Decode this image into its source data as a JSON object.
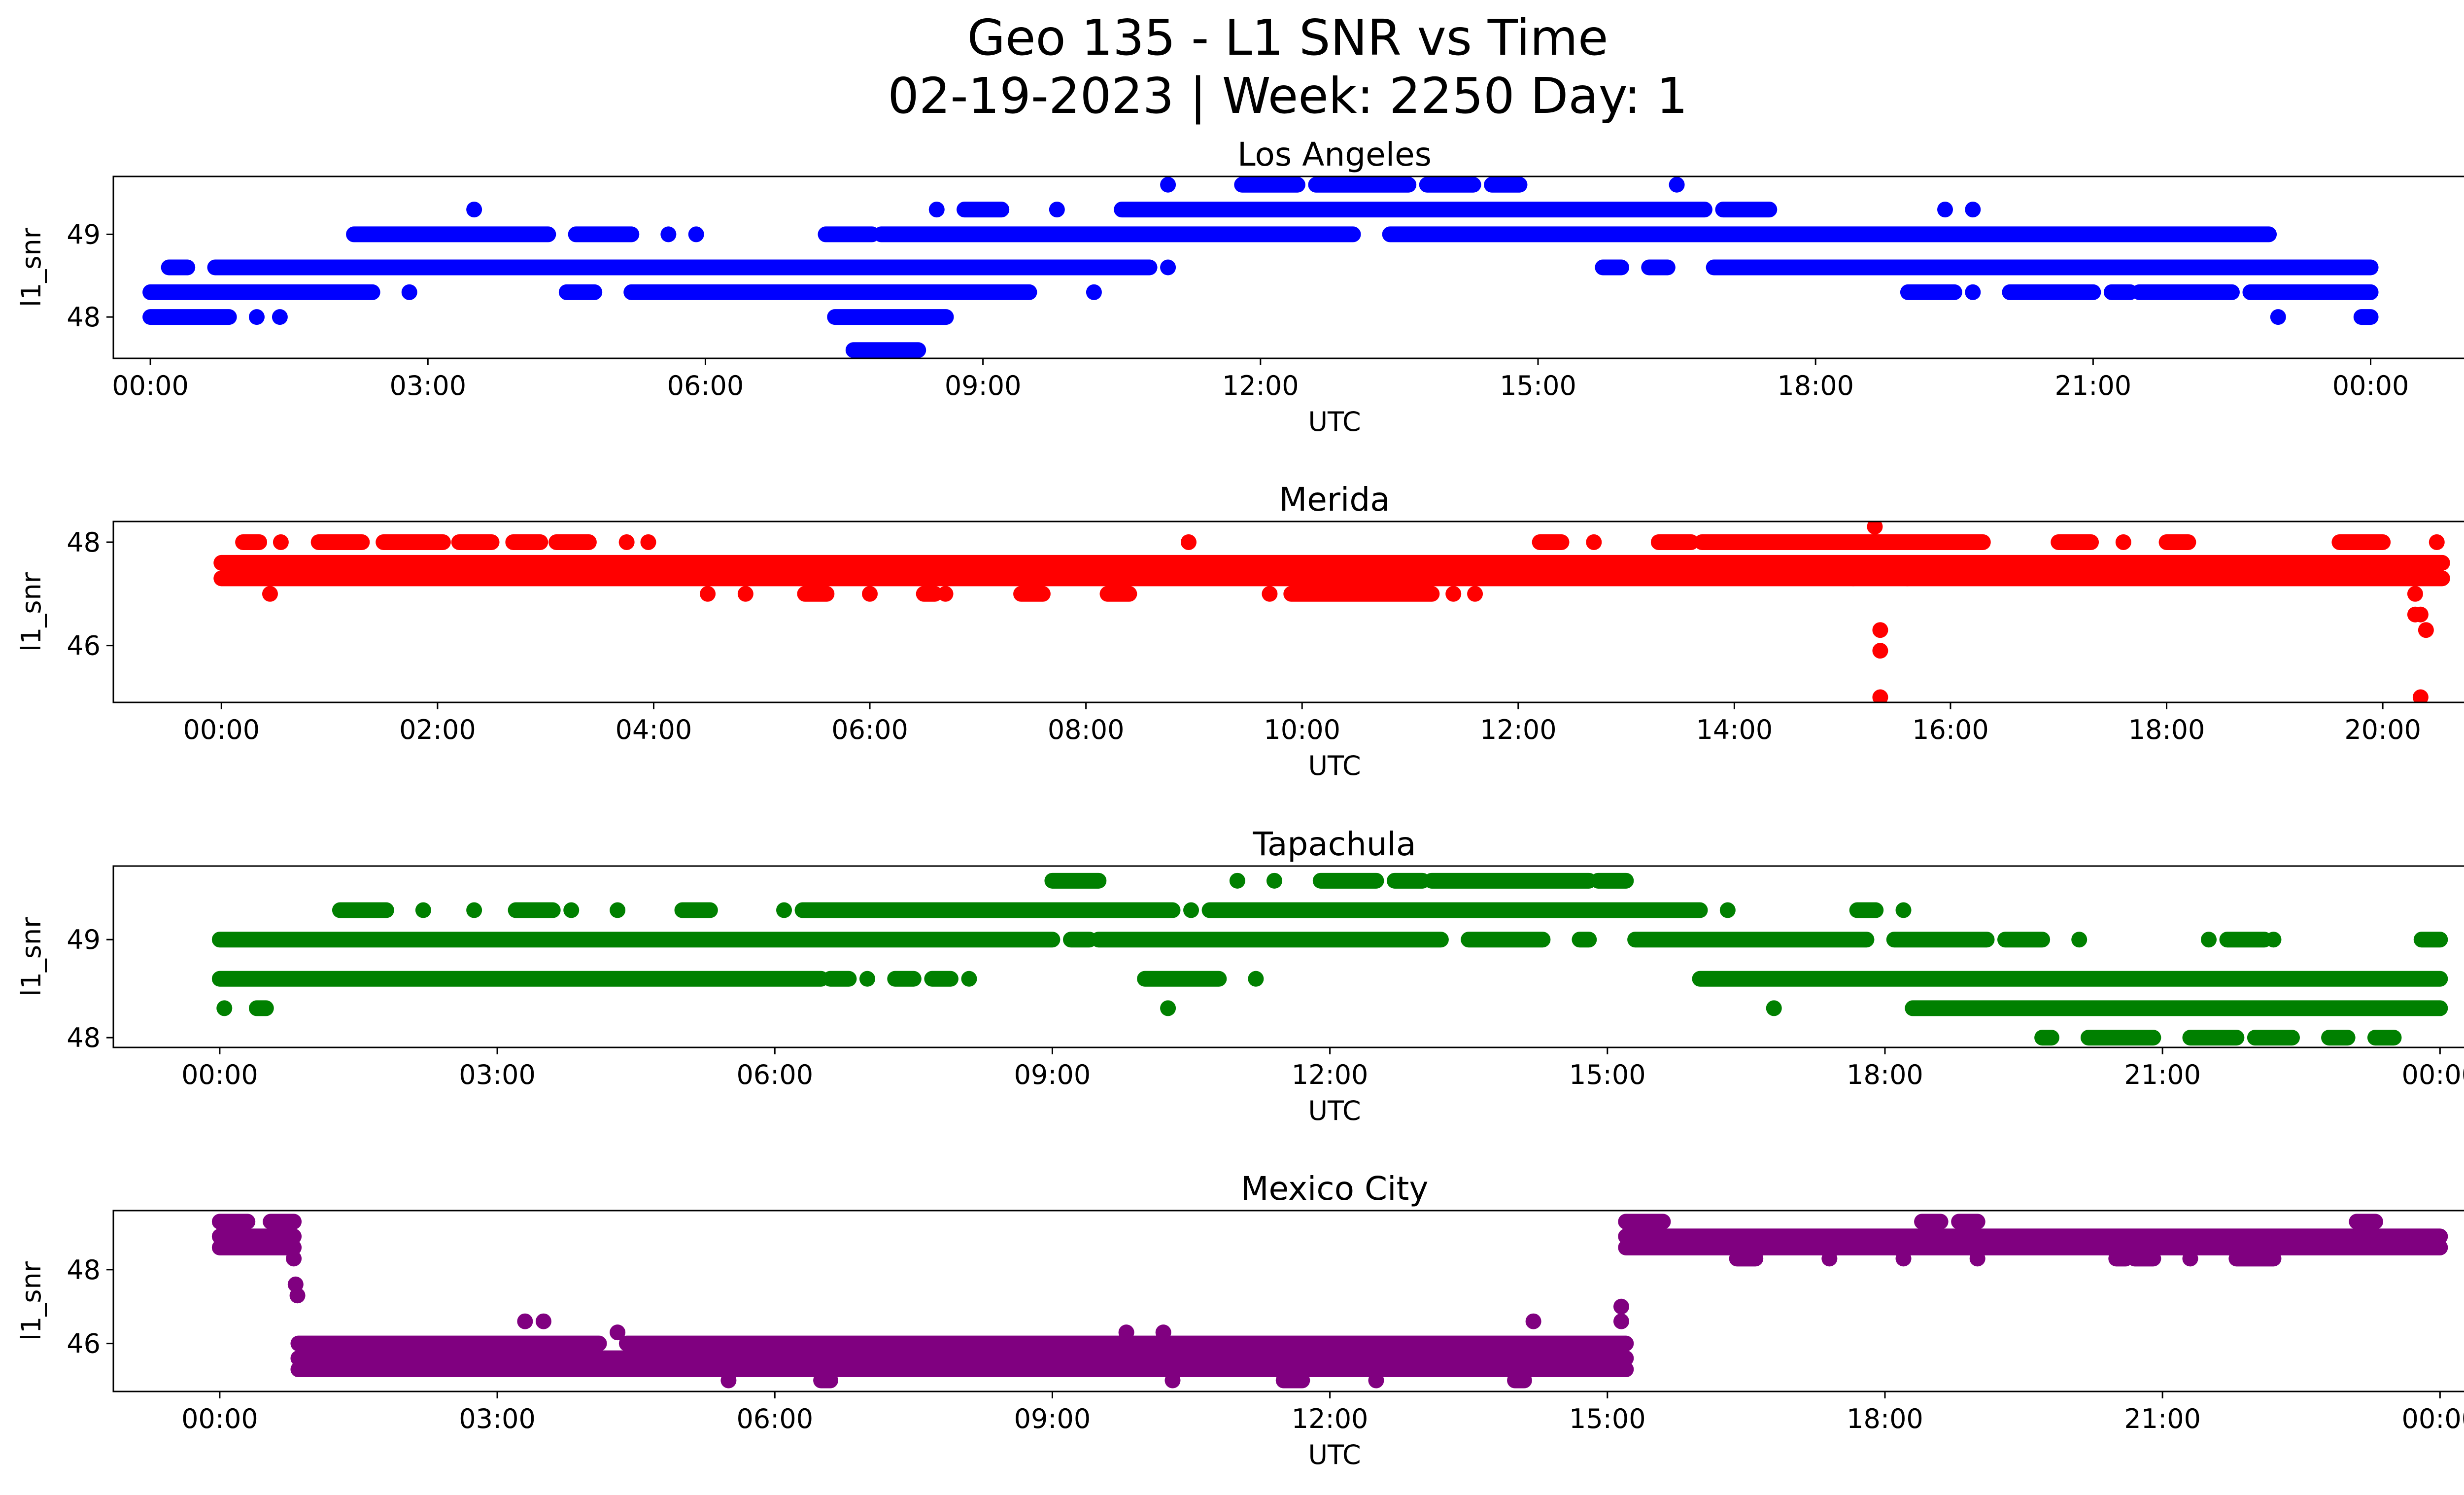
{
  "figure": {
    "title_line1": "Geo 135 - L1 SNR vs Time",
    "title_line2": "02-19-2023 | Week: 2250 Day: 1"
  },
  "chart_data": [
    {
      "type": "scatter",
      "title": "Los Angeles",
      "xlabel": "UTC",
      "ylabel": "l1_snr",
      "color": "#0000ff",
      "x_unit": "hours_utc",
      "xlim": [
        -0.4,
        26.0
      ],
      "ylim": [
        47.5,
        49.7
      ],
      "x_ticks": [
        0,
        3,
        6,
        9,
        12,
        15,
        18,
        21,
        24
      ],
      "x_tick_labels": [
        "00:00",
        "03:00",
        "06:00",
        "09:00",
        "12:00",
        "15:00",
        "18:00",
        "21:00",
        "00:00"
      ],
      "y_ticks": [
        48,
        49
      ],
      "y_tick_labels": [
        "48",
        "49"
      ],
      "bands": [
        {
          "y": 48.3,
          "segments": [
            [
              0.0,
              2.4
            ],
            [
              2.8,
              2.8
            ],
            [
              4.5,
              4.8
            ],
            [
              5.2,
              9.5
            ],
            [
              10.2,
              10.2
            ],
            [
              19.0,
              19.5
            ],
            [
              19.7,
              19.7
            ],
            [
              20.1,
              21.0
            ],
            [
              21.2,
              21.4
            ],
            [
              21.5,
              22.5
            ],
            [
              22.7,
              24.0
            ]
          ]
        },
        {
          "y": 48.0,
          "segments": [
            [
              0.0,
              0.85
            ],
            [
              1.15,
              1.15
            ],
            [
              1.4,
              1.4
            ],
            [
              7.4,
              8.6
            ],
            [
              23.0,
              23.0
            ],
            [
              23.9,
              24.0
            ]
          ]
        },
        {
          "y": 48.6,
          "segments": [
            [
              0.2,
              0.4
            ],
            [
              0.7,
              10.8
            ],
            [
              11.0,
              11.0
            ],
            [
              15.7,
              15.9
            ],
            [
              16.2,
              16.4
            ],
            [
              16.9,
              24.0
            ]
          ]
        },
        {
          "y": 47.6,
          "segments": [
            [
              7.6,
              8.3
            ]
          ]
        },
        {
          "y": 49.0,
          "segments": [
            [
              2.2,
              4.3
            ],
            [
              4.6,
              5.2
            ],
            [
              5.6,
              5.6
            ],
            [
              5.9,
              5.9
            ],
            [
              7.3,
              7.8
            ],
            [
              7.9,
              13.0
            ],
            [
              13.4,
              22.9
            ]
          ]
        },
        {
          "y": 49.3,
          "segments": [
            [
              3.5,
              3.5
            ],
            [
              8.5,
              8.5
            ],
            [
              8.8,
              9.2
            ],
            [
              9.8,
              9.8
            ],
            [
              10.5,
              16.8
            ],
            [
              17.0,
              17.5
            ],
            [
              19.4,
              19.4
            ],
            [
              19.7,
              19.7
            ]
          ]
        },
        {
          "y": 49.6,
          "segments": [
            [
              11.0,
              11.0
            ],
            [
              11.8,
              12.4
            ],
            [
              12.6,
              13.6
            ],
            [
              13.8,
              14.3
            ],
            [
              14.5,
              14.8
            ],
            [
              16.5,
              16.5
            ]
          ]
        }
      ],
      "points": []
    },
    {
      "type": "scatter",
      "title": "Merida",
      "xlabel": "UTC",
      "ylabel": "l1_snr",
      "color": "#ff0000",
      "x_unit": "hours_utc",
      "xlim": [
        -1.0,
        21.6
      ],
      "ylim": [
        44.9,
        48.4
      ],
      "x_ticks": [
        0,
        2,
        4,
        6,
        8,
        10,
        12,
        14,
        16,
        18,
        20
      ],
      "x_tick_labels": [
        "00:00",
        "02:00",
        "04:00",
        "06:00",
        "08:00",
        "10:00",
        "12:00",
        "14:00",
        "16:00",
        "18:00",
        "20:00"
      ],
      "y_ticks": [
        46,
        48
      ],
      "y_tick_labels": [
        "46",
        "48"
      ],
      "bands": [
        {
          "y": 47.6,
          "segments": [
            [
              0.0,
              20.55
            ]
          ]
        },
        {
          "y": 47.3,
          "segments": [
            [
              0.0,
              20.55
            ]
          ]
        },
        {
          "y": 48.0,
          "segments": [
            [
              0.2,
              0.35
            ],
            [
              0.55,
              0.55
            ],
            [
              0.9,
              1.3
            ],
            [
              1.5,
              2.05
            ],
            [
              2.2,
              2.5
            ],
            [
              2.7,
              2.95
            ],
            [
              3.1,
              3.4
            ],
            [
              3.75,
              3.75
            ],
            [
              3.95,
              3.95
            ],
            [
              8.95,
              8.95
            ],
            [
              12.2,
              12.4
            ],
            [
              12.7,
              12.7
            ],
            [
              13.3,
              13.6
            ],
            [
              13.7,
              16.3
            ],
            [
              17.0,
              17.3
            ],
            [
              17.6,
              17.6
            ],
            [
              18.0,
              18.2
            ],
            [
              19.6,
              20.0
            ]
          ]
        },
        {
          "y": 47.0,
          "segments": [
            [
              0.45,
              0.45
            ],
            [
              4.5,
              4.5
            ],
            [
              4.85,
              4.85
            ],
            [
              5.4,
              5.6
            ],
            [
              6.0,
              6.0
            ],
            [
              6.5,
              6.6
            ],
            [
              6.7,
              6.7
            ],
            [
              7.4,
              7.6
            ],
            [
              8.2,
              8.4
            ],
            [
              9.7,
              9.7
            ],
            [
              9.9,
              11.2
            ],
            [
              11.4,
              11.4
            ],
            [
              11.6,
              11.6
            ]
          ]
        },
        {
          "y": 48.3,
          "segments": [
            [
              15.3,
              15.3
            ]
          ]
        }
      ],
      "points": [
        {
          "x": 15.35,
          "y": 46.3
        },
        {
          "x": 15.35,
          "y": 45.9
        },
        {
          "x": 15.35,
          "y": 45.0
        },
        {
          "x": 15.1,
          "y": 47.3
        },
        {
          "x": 15.6,
          "y": 47.3
        },
        {
          "x": 20.3,
          "y": 46.6
        },
        {
          "x": 20.35,
          "y": 46.6
        },
        {
          "x": 20.4,
          "y": 46.3
        },
        {
          "x": 20.3,
          "y": 47.0
        },
        {
          "x": 20.35,
          "y": 45.0
        },
        {
          "x": 20.5,
          "y": 48.0
        }
      ]
    },
    {
      "type": "scatter",
      "title": "Tapachula",
      "xlabel": "UTC",
      "ylabel": "l1_snr",
      "color": "#008000",
      "x_unit": "hours_utc",
      "xlim": [
        -1.15,
        25.25
      ],
      "ylim": [
        47.9,
        49.75
      ],
      "x_ticks": [
        0,
        3,
        6,
        9,
        12,
        15,
        18,
        21,
        24
      ],
      "x_tick_labels": [
        "00:00",
        "03:00",
        "06:00",
        "09:00",
        "12:00",
        "15:00",
        "18:00",
        "21:00",
        "00:00"
      ],
      "y_ticks": [
        48,
        49
      ],
      "y_tick_labels": [
        "48",
        "49"
      ],
      "bands": [
        {
          "y": 49.0,
          "segments": [
            [
              0.0,
              9.0
            ],
            [
              9.2,
              9.4
            ],
            [
              9.5,
              13.2
            ],
            [
              13.5,
              14.3
            ],
            [
              14.7,
              14.8
            ],
            [
              15.3,
              17.8
            ],
            [
              18.1,
              19.1
            ],
            [
              19.3,
              19.7
            ],
            [
              20.1,
              20.1
            ],
            [
              21.5,
              21.5
            ],
            [
              21.7,
              22.1
            ],
            [
              22.2,
              22.2
            ],
            [
              23.8,
              24.0
            ]
          ]
        },
        {
          "y": 48.6,
          "segments": [
            [
              0.0,
              6.5
            ],
            [
              6.6,
              6.8
            ],
            [
              7.0,
              7.0
            ],
            [
              7.3,
              7.5
            ],
            [
              7.7,
              7.9
            ],
            [
              8.1,
              8.1
            ],
            [
              10.0,
              10.8
            ],
            [
              11.2,
              11.2
            ],
            [
              16.0,
              24.0
            ]
          ]
        },
        {
          "y": 48.3,
          "segments": [
            [
              0.05,
              0.05
            ],
            [
              0.4,
              0.5
            ],
            [
              10.25,
              10.25
            ],
            [
              16.8,
              16.8
            ],
            [
              18.3,
              24.0
            ]
          ]
        },
        {
          "y": 48.0,
          "segments": [
            [
              19.7,
              19.8
            ],
            [
              20.2,
              20.9
            ],
            [
              21.3,
              21.8
            ],
            [
              22.0,
              22.4
            ],
            [
              22.8,
              23.0
            ],
            [
              23.3,
              23.5
            ]
          ]
        },
        {
          "y": 49.3,
          "segments": [
            [
              1.3,
              1.8
            ],
            [
              2.2,
              2.2
            ],
            [
              2.75,
              2.75
            ],
            [
              3.2,
              3.6
            ],
            [
              3.8,
              3.8
            ],
            [
              4.3,
              4.3
            ],
            [
              5.0,
              5.3
            ],
            [
              6.1,
              6.1
            ],
            [
              6.3,
              10.3
            ],
            [
              10.5,
              10.5
            ],
            [
              10.7,
              16.0
            ],
            [
              16.3,
              16.3
            ],
            [
              17.7,
              17.9
            ],
            [
              18.2,
              18.2
            ]
          ]
        },
        {
          "y": 49.6,
          "segments": [
            [
              9.0,
              9.5
            ],
            [
              11.0,
              11.0
            ],
            [
              11.4,
              11.4
            ],
            [
              11.9,
              12.5
            ],
            [
              12.7,
              13.0
            ],
            [
              13.1,
              14.8
            ],
            [
              14.9,
              15.2
            ]
          ]
        }
      ],
      "points": []
    },
    {
      "type": "scatter",
      "title": "Mexico City",
      "xlabel": "UTC",
      "ylabel": "l1_snr",
      "color": "#800080",
      "x_unit": "hours_utc",
      "xlim": [
        -1.15,
        25.25
      ],
      "ylim": [
        44.7,
        49.6
      ],
      "x_ticks": [
        0,
        3,
        6,
        9,
        12,
        15,
        18,
        21,
        24
      ],
      "x_tick_labels": [
        "00:00",
        "03:00",
        "06:00",
        "09:00",
        "12:00",
        "15:00",
        "18:00",
        "21:00",
        "00:00"
      ],
      "y_ticks": [
        46,
        48
      ],
      "y_tick_labels": [
        "46",
        "48"
      ],
      "bands": [
        {
          "y": 48.6,
          "segments": [
            [
              0.0,
              0.8
            ],
            [
              15.2,
              24.0
            ]
          ]
        },
        {
          "y": 48.9,
          "segments": [
            [
              0.0,
              0.8
            ],
            [
              15.2,
              24.0
            ]
          ]
        },
        {
          "y": 49.3,
          "segments": [
            [
              0.0,
              0.3
            ],
            [
              0.55,
              0.8
            ],
            [
              15.2,
              15.6
            ],
            [
              18.4,
              18.6
            ],
            [
              18.8,
              19.0
            ],
            [
              23.1,
              23.3
            ]
          ]
        },
        {
          "y": 48.3,
          "segments": [
            [
              16.4,
              16.6
            ],
            [
              17.4,
              17.4
            ],
            [
              18.2,
              18.2
            ],
            [
              19.0,
              19.0
            ],
            [
              20.5,
              20.6
            ],
            [
              20.7,
              20.9
            ],
            [
              21.3,
              21.3
            ],
            [
              21.8,
              22.2
            ]
          ]
        },
        {
          "y": 46.0,
          "segments": [
            [
              0.85,
              4.1
            ],
            [
              4.4,
              15.2
            ]
          ]
        },
        {
          "y": 45.6,
          "segments": [
            [
              0.85,
              15.2
            ]
          ]
        },
        {
          "y": 45.3,
          "segments": [
            [
              0.85,
              15.2
            ]
          ]
        },
        {
          "y": 45.0,
          "segments": [
            [
              5.5,
              5.5
            ],
            [
              6.5,
              6.6
            ],
            [
              10.3,
              10.3
            ],
            [
              11.5,
              11.7
            ],
            [
              12.5,
              12.5
            ],
            [
              14.0,
              14.1
            ]
          ]
        }
      ],
      "points": [
        {
          "x": 0.8,
          "y": 48.3
        },
        {
          "x": 0.82,
          "y": 47.6
        },
        {
          "x": 0.84,
          "y": 47.3
        },
        {
          "x": 15.15,
          "y": 47.0
        },
        {
          "x": 15.15,
          "y": 46.6
        },
        {
          "x": 3.3,
          "y": 46.6
        },
        {
          "x": 3.5,
          "y": 46.6
        },
        {
          "x": 4.3,
          "y": 46.3
        },
        {
          "x": 9.8,
          "y": 46.3
        },
        {
          "x": 10.2,
          "y": 46.3
        },
        {
          "x": 14.2,
          "y": 46.6
        }
      ]
    }
  ]
}
